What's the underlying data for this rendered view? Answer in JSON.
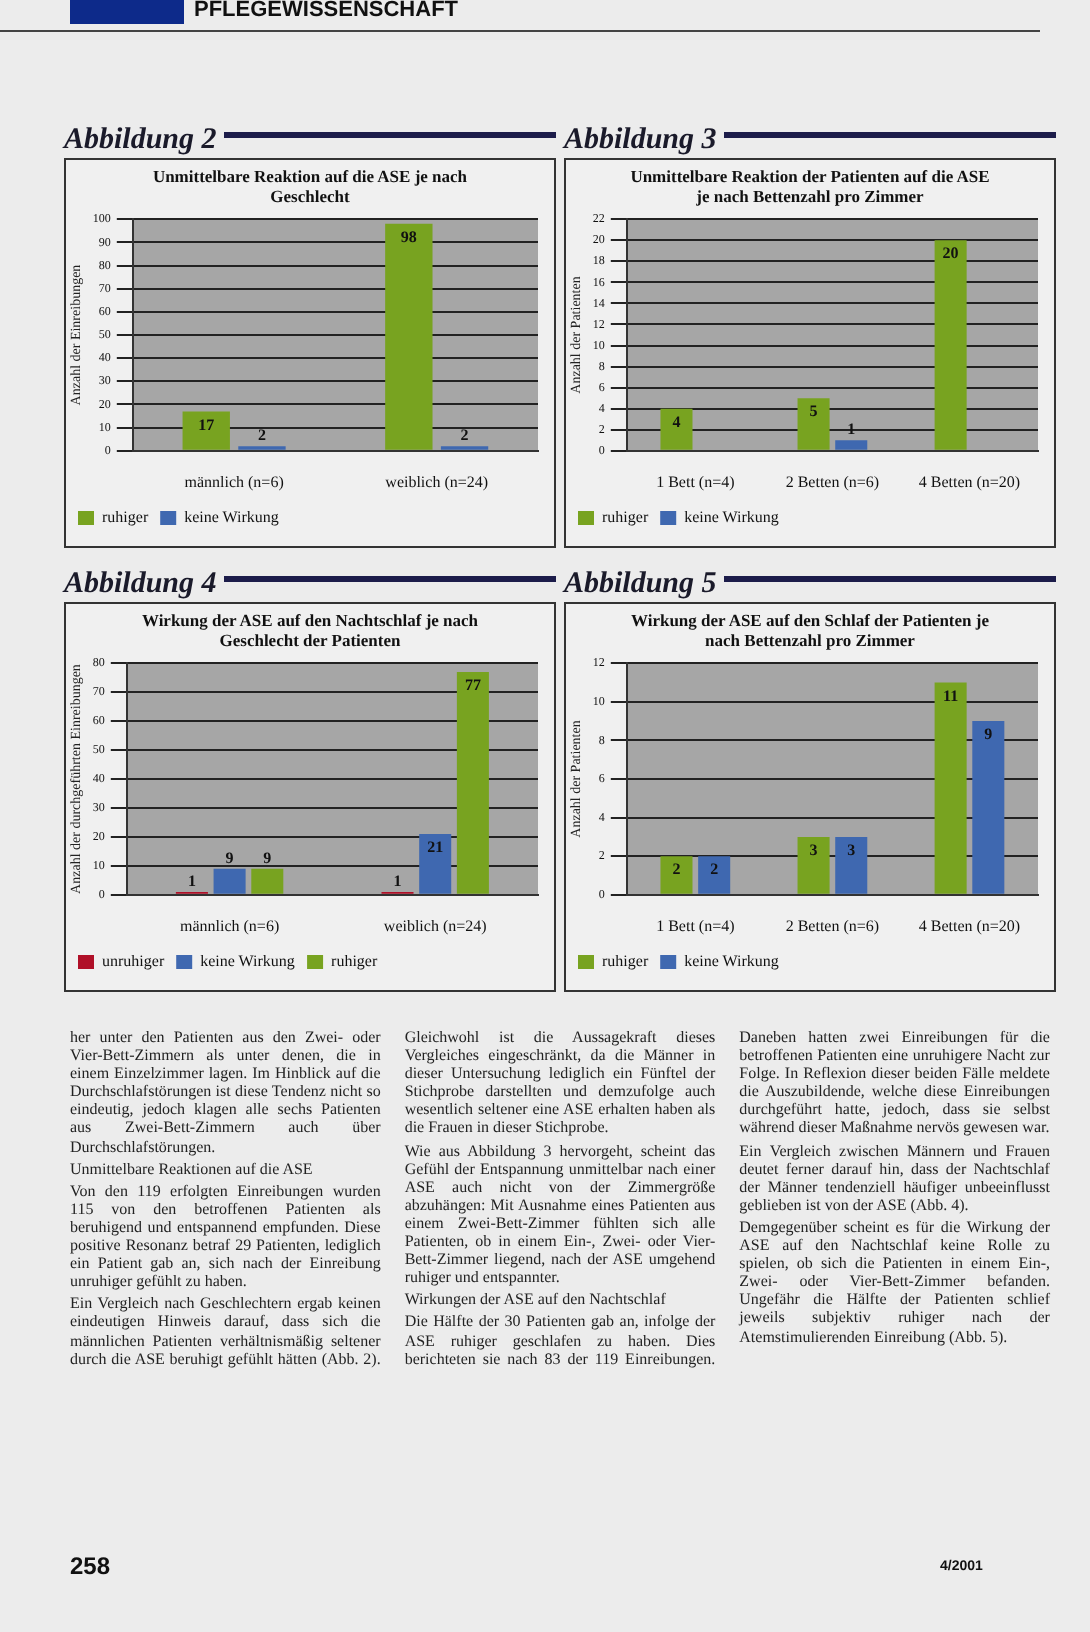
{
  "chart_data": [
    {
      "type": "other",
      "title": "PFLEGEWISSENSCHAFT"
    },
    {
      "type": "bar",
      "title": "Abbildung 2",
      "subtitle": "Unmittelbare Reaktion auf die ASE je nach Geschlecht",
      "ylabel": "Anzahl der Einreibungen",
      "categories": [
        "männlich (n=6)",
        "weiblich (n=24)"
      ],
      "series": [
        {
          "name": "ruhiger",
          "color": "#78a320",
          "values": [
            17,
            98
          ]
        },
        {
          "name": "keine Wirkung",
          "color": "#3f68b0",
          "values": [
            2,
            2
          ]
        }
      ],
      "ylim": [
        0,
        100
      ],
      "yticks": [
        0,
        10,
        20,
        30,
        40,
        50,
        60,
        70,
        80,
        90,
        100
      ],
      "grid": "y",
      "legend": "bottom",
      "data_labels": true
    },
    {
      "type": "bar",
      "title": "Abbildung 3",
      "subtitle": "Unmittelbare Reaktion der Patienten auf die ASE je nach Bettenzahl pro Zimmer",
      "ylabel": "Anzahl der Patienten",
      "categories": [
        "1 Bett (n=4)",
        "2 Betten (n=6)",
        "4 Betten (n=20)"
      ],
      "series": [
        {
          "name": "ruhiger",
          "color": "#78a320",
          "values": [
            4,
            5,
            20
          ]
        },
        {
          "name": "keine Wirkung",
          "color": "#3f68b0",
          "values": [
            null,
            1,
            null
          ]
        }
      ],
      "ylim": [
        0,
        22
      ],
      "yticks": [
        0,
        2,
        4,
        6,
        8,
        10,
        12,
        14,
        16,
        18,
        20,
        22
      ],
      "grid": "y",
      "legend": "bottom",
      "data_labels": true
    },
    {
      "type": "bar",
      "title": "Abbildung 4",
      "subtitle": "Wirkung der ASE auf den Nachtschlaf je nach Geschlecht der Patienten",
      "ylabel": "Anzahl der durchgeführten Einreibungen",
      "categories": [
        "männlich (n=6)",
        "weiblich (n=24)"
      ],
      "series": [
        {
          "name": "unruhiger",
          "color": "#b01028",
          "values": [
            1,
            1
          ]
        },
        {
          "name": "keine Wirkung",
          "color": "#3f68b0",
          "values": [
            9,
            21
          ]
        },
        {
          "name": "ruhiger",
          "color": "#78a320",
          "values": [
            9,
            77
          ]
        }
      ],
      "ylim": [
        0,
        80
      ],
      "yticks": [
        0,
        10,
        20,
        30,
        40,
        50,
        60,
        70,
        80
      ],
      "grid": "y",
      "legend": "bottom",
      "data_labels": true
    },
    {
      "type": "bar",
      "title": "Abbildung 5",
      "subtitle": "Wirkung der ASE auf den Schlaf der Patienten je nach Bettenzahl pro Zimmer",
      "ylabel": "Anzahl der Patienten",
      "categories": [
        "1 Bett (n=4)",
        "2 Betten (n=6)",
        "4 Betten (n=20)"
      ],
      "series": [
        {
          "name": "ruhiger",
          "color": "#78a320",
          "values": [
            2,
            3,
            11
          ]
        },
        {
          "name": "keine Wirkung",
          "color": "#3f68b0",
          "values": [
            2,
            3,
            9
          ]
        }
      ],
      "ylim": [
        0,
        12
      ],
      "yticks": [
        0,
        2,
        4,
        6,
        8,
        10,
        12
      ],
      "grid": "y",
      "legend": "bottom",
      "data_labels": true
    },
    {
      "type": "other",
      "annotations": [
        "her unter den Patienten aus den Zwei- oder Vier-Bett-Zimmern als unter denen, die in einem Einzelzimmer lagen. Im Hinblick auf die Durchschlafstörungen ist diese Tendenz nicht so eindeutig, jedoch klagen alle sechs Patienten aus Zwei-Bett-Zimmern auch über Durchschlafstörungen.",
        "Unmittelbare Reaktionen auf die ASE",
        "Von den 119 erfolgten Einreibungen wurden 115 von den betroffenen Patienten als beruhigend und entspannend empfunden. Diese positive Resonanz betraf 29 Patienten, lediglich ein Patient gab an, sich nach der Einreibung unruhiger gefühlt zu haben.",
        "Ein Vergleich nach Geschlechtern ergab keinen eindeutigen Hinweis darauf, dass sich die männlichen Patienten verhältnismäßig seltener durch die ASE beruhigt gefühlt hätten (Abb. 2). Gleichwohl ist die Aussagekraft dieses Vergleiches eingeschränkt, da die Männer in dieser Untersuchung lediglich ein Fünftel der Stichprobe darstellten und demzufolge auch wesentlich seltener eine ASE erhalten haben als die Frauen in dieser Stichprobe.",
        "Wie aus Abbildung 3 hervorgeht, scheint das Gefühl der Entspannung unmittelbar nach einer ASE auch nicht von der Zimmergröße abzuhängen: Mit Ausnahme eines Patienten aus einem Zwei-Bett-Zimmer fühlten sich alle Patienten, ob in einem Ein-, Zwei- oder Vier-Bett-Zimmer liegend, nach der ASE umgehend ruhiger und entspannter.",
        "Wirkungen der ASE auf den Nachtschlaf",
        "Die Hälfte der 30 Patienten gab an, infolge der ASE ruhiger geschlafen zu haben. Dies berichteten sie nach 83 der 119 Einreibungen. Daneben hatten zwei Einreibungen für die betroffenen Patienten eine unruhigere Nacht zur Folge. In Reflexion dieser beiden Fälle meldete die Auszubildende, welche diese Einreibungen durchgeführt hatte, jedoch, dass sie selbst während dieser Maßnahme nervös gewesen war.",
        "Ein Vergleich zwischen Männern und Frauen deutet ferner darauf hin, dass der Nachtschlaf der Männer tendenziell häufiger unbeeinflusst geblieben ist von der ASE (Abb. 4).",
        "Demgegenüber scheint es für die Wirkung der ASE auf den Nachtschlaf keine Rolle zu spielen, ob sich die Patienten in einem Ein-, Zwei- oder Vier-Bett-Zimmer befanden. Ungefähr die Hälfte der Patienten schlief jeweils subjektiv ruhiger nach der Atemstimulierenden Einreibung (Abb. 5).",
        "258",
        "4/2001"
      ]
    }
  ]
}
